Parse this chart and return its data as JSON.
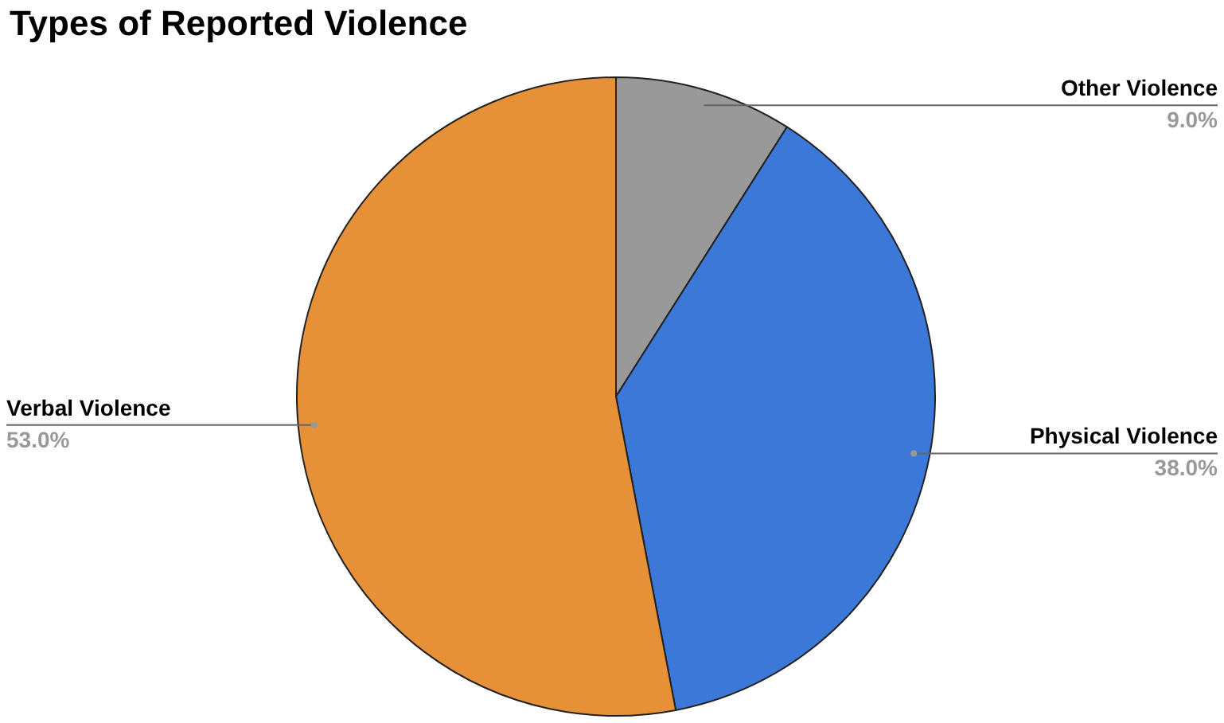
{
  "chart_data": {
    "type": "pie",
    "title": "Types of Reported Violence",
    "categories": [
      "Other Violence",
      "Physical Violence",
      "Verbal Violence"
    ],
    "values": [
      9.0,
      38.0,
      53.0
    ],
    "colors": [
      "#999999",
      "#3c78d8",
      "#e69138"
    ],
    "value_labels": [
      "9.0%",
      "38.0%",
      "53.0%"
    ],
    "legend": false
  }
}
